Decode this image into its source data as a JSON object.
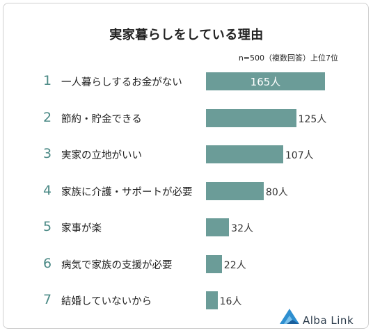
{
  "title": "実家暮らしをしている理由",
  "subtitle": "n=500（複数回答）上位7位",
  "unit": "人",
  "brand": "Alba Link",
  "colors": {
    "bar": "#6b9c98",
    "rank": "#4a8985"
  },
  "chart_data": {
    "type": "bar",
    "orientation": "horizontal",
    "title": "実家暮らしをしている理由",
    "subtitle": "n=500（複数回答）上位7位",
    "ranks": [
      "1",
      "2",
      "3",
      "4",
      "5",
      "6",
      "7"
    ],
    "categories": [
      "一人暮らしするお金がない",
      "節約・貯金できる",
      "実家の立地がいい",
      "家族に介護・サポートが必要",
      "家事が楽",
      "病気で家族の支援が必要",
      "結婚していないから"
    ],
    "values": [
      165,
      125,
      107,
      80,
      32,
      22,
      16
    ],
    "value_labels": [
      "165人",
      "125人",
      "107人",
      "80人",
      "32人",
      "22人",
      "16人"
    ],
    "xlim": [
      0,
      165
    ]
  }
}
